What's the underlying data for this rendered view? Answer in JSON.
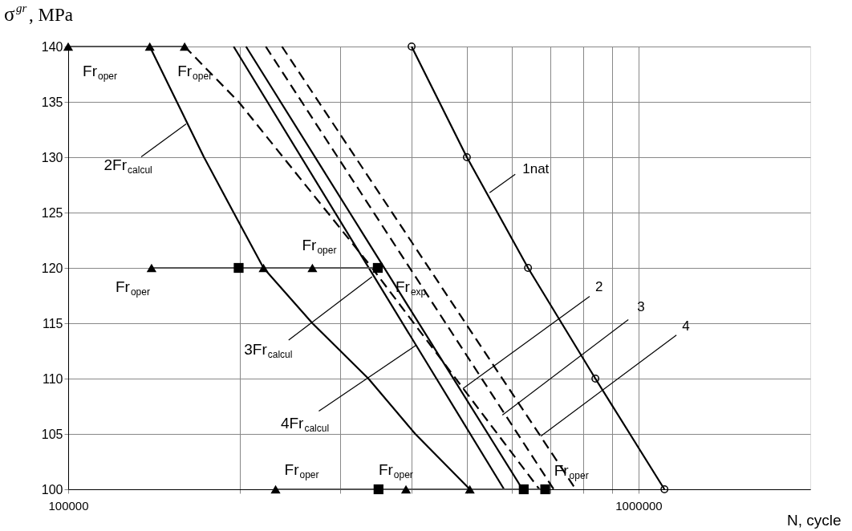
{
  "chart_data": {
    "type": "line",
    "ylabel": "σ$^{gr}$, MPa",
    "xlabel": "N, cycle",
    "log": "x",
    "grid": true,
    "xlim": [
      100000,
      2000000
    ],
    "ylim": [
      100,
      140
    ],
    "xticks": [
      100000,
      {
        "value": 200000,
        "label": null
      },
      {
        "value": 300000,
        "label": null
      },
      {
        "value": 400000,
        "label": null
      },
      {
        "value": 500000,
        "label": null
      },
      {
        "value": 600000,
        "label": null
      },
      {
        "value": 700000,
        "label": null
      },
      {
        "value": 800000,
        "label": null
      },
      {
        "value": 900000,
        "label": null
      },
      1000000
    ],
    "yticks": [
      100,
      105,
      110,
      115,
      120,
      125,
      130,
      135,
      140
    ],
    "series": [
      {
        "color": "#000000",
        "marker": "circle",
        "line_style": "solid",
        "x": [
          400000,
          500000,
          640000,
          840000,
          1110000
        ],
        "values": [
          140,
          130,
          120,
          110,
          100
        ]
      },
      {
        "color": "#000000",
        "marker": "none",
        "line_style": "solid",
        "x": [
          139000,
          173000,
          195000,
          220000,
          268000,
          336000,
          406000,
          506000
        ],
        "values": [
          140,
          130,
          125,
          120,
          115,
          110,
          105,
          100
        ]
      },
      {
        "color": "#000000",
        "marker": "none",
        "line_style": "solid",
        "x": [
          195000,
          581000
        ],
        "values": [
          140,
          100
        ]
      },
      {
        "color": "#000000",
        "marker": "none",
        "line_style": "solid",
        "x": [
          205000,
          626000
        ],
        "values": [
          140,
          100
        ]
      },
      {
        "color": "#000000",
        "marker": "none",
        "line_style": "dashed",
        "x": [
          160000,
          199000,
          341000,
          670000
        ],
        "values": [
          140,
          135,
          120,
          100
        ]
      },
      {
        "color": "#000000",
        "marker": "none",
        "line_style": "dashed",
        "x": [
          222000,
          710000
        ],
        "values": [
          140,
          100
        ]
      },
      {
        "color": "#000000",
        "marker": "none",
        "line_style": "dashed",
        "x": [
          237000,
          776000
        ],
        "values": [
          140,
          100
        ]
      },
      {
        "color": "#555555",
        "marker": "none",
        "line_style": "solid",
        "x": [
          100000,
          160000
        ],
        "values": [
          140,
          140
        ]
      },
      {
        "color": "#555555",
        "marker": "none",
        "line_style": "solid",
        "x": [
          140000,
          349000
        ],
        "values": [
          120,
          120
        ]
      },
      {
        "color": "#555555",
        "marker": "none",
        "line_style": "solid",
        "x": [
          231000,
          686000
        ],
        "values": [
          100,
          100
        ]
      },
      {
        "type": "scatter",
        "color": "#000000",
        "marker": "triangle",
        "x": [
          100000,
          139000,
          160000,
          140000,
          220000,
          268000,
          231000,
          391000,
          506000
        ],
        "values": [
          140,
          140,
          140,
          120,
          120,
          120,
          100,
          100,
          100
        ]
      },
      {
        "type": "scatter",
        "color": "#000000",
        "marker": "square",
        "x": [
          199000,
          349000,
          350000,
          629000,
          686000
        ],
        "values": [
          120,
          120,
          100,
          100,
          100
        ]
      }
    ],
    "annotations": [
      {
        "text": "Fr$_{oper}$",
        "x": 100000,
        "y": 140
      },
      {
        "text": "Fr$_{oper}$",
        "x": 160000,
        "y": 140
      },
      {
        "text": "2Fr$_{calcul}$",
        "x": 161000,
        "y": 133
      },
      {
        "text": "Fr$_{oper}$",
        "x": 268000,
        "y": 120
      },
      {
        "text": "Fr$_{oper}$",
        "x": 140000,
        "y": 120
      },
      {
        "text": "Fr$_{exp}$",
        "x": 349000,
        "y": 120
      },
      {
        "text": "3Fr$_{calcul}$",
        "x": 341000,
        "y": 119.2
      },
      {
        "text": "4Fr$_{calcul}$",
        "x": 407000,
        "y": 113
      },
      {
        "text": "Fr$_{oper}$",
        "x": 231000,
        "y": 100
      },
      {
        "text": "Fr$_{oper}$",
        "x": 350000,
        "y": 100
      },
      {
        "text": "Fr$_{oper}$",
        "x": 686000,
        "y": 100
      },
      {
        "text": "1nat",
        "x": 548000,
        "y": 126.8
      },
      {
        "text": "2",
        "x": 492000,
        "y": 109.1
      },
      {
        "text": "3",
        "x": 577000,
        "y": 106.7
      },
      {
        "text": "4",
        "x": 674000,
        "y": 104.8
      }
    ]
  }
}
